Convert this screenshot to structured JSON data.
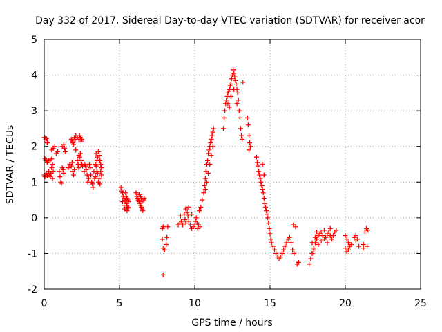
{
  "chart_data": {
    "type": "scatter",
    "title": "Day 332 of 2017, Sidereal Day-to-day VTEC variation (SDTVAR) for receiver acor",
    "xlabel": "GPS time / hours",
    "ylabel": "SDTVAR / TECUs",
    "xlim": [
      0,
      25
    ],
    "ylim": [
      -2,
      5
    ],
    "xticks": [
      0,
      5,
      10,
      15,
      20,
      25
    ],
    "yticks": [
      -2,
      -1,
      0,
      1,
      2,
      3,
      4,
      5
    ],
    "grid": true,
    "marker": "+",
    "color": "#ff0000",
    "series": [
      {
        "name": "SDTVAR",
        "points": [
          [
            0.0,
            2.25
          ],
          [
            0.05,
            2.25
          ],
          [
            0.1,
            2.2
          ],
          [
            0.15,
            2.22
          ],
          [
            0.2,
            2.1
          ],
          [
            0.05,
            1.65
          ],
          [
            0.1,
            1.6
          ],
          [
            0.15,
            1.62
          ],
          [
            0.2,
            1.55
          ],
          [
            0.3,
            1.6
          ],
          [
            0.4,
            1.62
          ],
          [
            0.5,
            1.65
          ],
          [
            0.55,
            1.5
          ],
          [
            0.0,
            1.2
          ],
          [
            0.05,
            1.15
          ],
          [
            0.1,
            1.2
          ],
          [
            0.15,
            1.25
          ],
          [
            0.2,
            1.18
          ],
          [
            0.3,
            1.3
          ],
          [
            0.35,
            1.2
          ],
          [
            0.4,
            1.15
          ],
          [
            0.45,
            1.25
          ],
          [
            0.5,
            1.4
          ],
          [
            0.55,
            1.1
          ],
          [
            0.6,
            1.3
          ],
          [
            0.5,
            1.9
          ],
          [
            0.6,
            1.95
          ],
          [
            0.7,
            2.0
          ],
          [
            0.8,
            1.8
          ],
          [
            0.9,
            1.85
          ],
          [
            1.0,
            1.3
          ],
          [
            1.05,
            1.15
          ],
          [
            1.1,
            1.0
          ],
          [
            1.15,
            0.97
          ],
          [
            1.2,
            1.4
          ],
          [
            1.25,
            1.35
          ],
          [
            1.3,
            1.25
          ],
          [
            1.2,
            2.0
          ],
          [
            1.3,
            2.05
          ],
          [
            1.35,
            1.95
          ],
          [
            1.4,
            1.85
          ],
          [
            1.6,
            1.4
          ],
          [
            1.7,
            1.5
          ],
          [
            1.8,
            1.45
          ],
          [
            1.85,
            1.55
          ],
          [
            1.9,
            1.3
          ],
          [
            1.95,
            1.2
          ],
          [
            2.0,
            1.35
          ],
          [
            1.8,
            2.2
          ],
          [
            1.85,
            2.15
          ],
          [
            1.9,
            2.1
          ],
          [
            1.95,
            2.05
          ],
          [
            2.0,
            2.25
          ],
          [
            2.05,
            2.2
          ],
          [
            2.1,
            1.9
          ],
          [
            2.2,
            1.6
          ],
          [
            2.25,
            1.5
          ],
          [
            2.3,
            1.4
          ],
          [
            2.1,
            2.3
          ],
          [
            2.2,
            2.25
          ],
          [
            2.3,
            2.2
          ],
          [
            2.35,
            2.3
          ],
          [
            2.4,
            2.25
          ],
          [
            2.45,
            2.15
          ],
          [
            2.5,
            2.2
          ],
          [
            2.3,
            1.75
          ],
          [
            2.35,
            1.7
          ],
          [
            2.4,
            1.8
          ],
          [
            2.45,
            1.6
          ],
          [
            2.5,
            1.5
          ],
          [
            2.55,
            1.45
          ],
          [
            2.65,
            1.3
          ],
          [
            2.7,
            1.5
          ],
          [
            2.75,
            1.45
          ],
          [
            2.8,
            1.35
          ],
          [
            2.85,
            1.2
          ],
          [
            2.9,
            1.0
          ],
          [
            2.95,
            1.1
          ],
          [
            3.0,
            1.5
          ],
          [
            3.05,
            1.4
          ],
          [
            3.1,
            1.2
          ],
          [
            3.15,
            1.0
          ],
          [
            3.2,
            0.95
          ],
          [
            3.25,
            0.85
          ],
          [
            3.3,
            1.3
          ],
          [
            3.35,
            1.1
          ],
          [
            3.4,
            1.5
          ],
          [
            3.45,
            1.45
          ],
          [
            3.5,
            1.6
          ],
          [
            3.55,
            1.7
          ],
          [
            3.6,
            1.85
          ],
          [
            3.65,
            1.75
          ],
          [
            3.7,
            1.6
          ],
          [
            3.75,
            1.5
          ],
          [
            3.8,
            1.2
          ],
          [
            3.55,
            1.25
          ],
          [
            3.6,
            1.0
          ],
          [
            3.65,
            1.1
          ],
          [
            3.7,
            0.95
          ],
          [
            3.75,
            1.3
          ],
          [
            3.8,
            1.4
          ],
          [
            3.45,
            1.8
          ],
          [
            3.5,
            1.3
          ],
          [
            3.4,
            1.15
          ],
          [
            5.1,
            0.85
          ],
          [
            5.15,
            0.75
          ],
          [
            5.2,
            0.7
          ],
          [
            5.25,
            0.6
          ],
          [
            5.3,
            0.55
          ],
          [
            5.35,
            0.5
          ],
          [
            5.4,
            0.45
          ],
          [
            5.45,
            0.4
          ],
          [
            5.5,
            0.35
          ],
          [
            5.55,
            0.3
          ],
          [
            5.6,
            0.28
          ],
          [
            5.2,
            0.45
          ],
          [
            5.3,
            0.35
          ],
          [
            5.4,
            0.7
          ],
          [
            5.45,
            0.6
          ],
          [
            5.5,
            0.55
          ],
          [
            5.55,
            0.5
          ],
          [
            5.6,
            0.45
          ],
          [
            5.35,
            0.25
          ],
          [
            5.5,
            0.2
          ],
          [
            6.1,
            0.7
          ],
          [
            6.15,
            0.6
          ],
          [
            6.2,
            0.55
          ],
          [
            6.25,
            0.5
          ],
          [
            6.3,
            0.45
          ],
          [
            6.35,
            0.4
          ],
          [
            6.4,
            0.35
          ],
          [
            6.45,
            0.3
          ],
          [
            6.5,
            0.25
          ],
          [
            6.55,
            0.2
          ],
          [
            6.6,
            0.5
          ],
          [
            6.65,
            0.55
          ],
          [
            6.3,
            0.65
          ],
          [
            6.4,
            0.6
          ],
          [
            6.45,
            0.55
          ],
          [
            6.5,
            0.45
          ],
          [
            7.85,
            -0.3
          ],
          [
            7.9,
            -0.25
          ],
          [
            7.85,
            -0.6
          ],
          [
            7.9,
            -0.85
          ],
          [
            8.0,
            -0.9
          ],
          [
            8.1,
            -0.75
          ],
          [
            8.15,
            -0.55
          ],
          [
            8.2,
            -0.25
          ],
          [
            7.9,
            -1.6
          ],
          [
            8.9,
            -0.2
          ],
          [
            9.0,
            -0.15
          ],
          [
            9.05,
            0.05
          ],
          [
            9.1,
            -0.1
          ],
          [
            9.2,
            -0.2
          ],
          [
            9.3,
            0.1
          ],
          [
            9.35,
            -0.05
          ],
          [
            9.4,
            -0.15
          ],
          [
            9.5,
            0.15
          ],
          [
            9.55,
            0.05
          ],
          [
            9.6,
            -0.1
          ],
          [
            9.7,
            -0.2
          ],
          [
            9.8,
            -0.3
          ],
          [
            9.9,
            -0.25
          ],
          [
            10.0,
            -0.2
          ],
          [
            10.05,
            -0.1
          ],
          [
            10.1,
            0.0
          ],
          [
            10.15,
            -0.15
          ],
          [
            10.2,
            -0.3
          ],
          [
            10.25,
            -0.2
          ],
          [
            10.3,
            0.2
          ],
          [
            10.35,
            -0.25
          ],
          [
            9.4,
            0.25
          ],
          [
            9.6,
            0.3
          ],
          [
            9.8,
            0.1
          ],
          [
            10.4,
            0.3
          ],
          [
            10.5,
            0.5
          ],
          [
            10.6,
            0.7
          ],
          [
            10.65,
            0.9
          ],
          [
            10.7,
            1.1
          ],
          [
            10.75,
            1.3
          ],
          [
            10.8,
            1.5
          ],
          [
            10.85,
            1.6
          ],
          [
            10.9,
            1.8
          ],
          [
            10.95,
            1.9
          ],
          [
            11.0,
            2.0
          ],
          [
            11.05,
            2.1
          ],
          [
            11.1,
            2.2
          ],
          [
            11.15,
            2.3
          ],
          [
            11.2,
            2.4
          ],
          [
            11.25,
            2.5
          ],
          [
            10.7,
            0.8
          ],
          [
            10.8,
            1.0
          ],
          [
            10.9,
            1.25
          ],
          [
            11.0,
            1.5
          ],
          [
            11.1,
            1.75
          ],
          [
            11.2,
            2.0
          ],
          [
            11.9,
            2.5
          ],
          [
            11.95,
            2.8
          ],
          [
            12.0,
            3.0
          ],
          [
            12.05,
            3.2
          ],
          [
            12.1,
            3.3
          ],
          [
            12.15,
            3.4
          ],
          [
            12.2,
            3.5
          ],
          [
            12.25,
            3.55
          ],
          [
            12.3,
            3.6
          ],
          [
            12.35,
            3.7
          ],
          [
            12.4,
            3.75
          ],
          [
            12.45,
            3.9
          ],
          [
            12.5,
            4.0
          ],
          [
            12.55,
            4.15
          ],
          [
            12.6,
            4.05
          ],
          [
            12.65,
            3.95
          ],
          [
            12.7,
            3.85
          ],
          [
            12.75,
            3.75
          ],
          [
            12.8,
            3.6
          ],
          [
            12.85,
            3.5
          ],
          [
            12.9,
            3.3
          ],
          [
            12.95,
            3.0
          ],
          [
            13.0,
            2.8
          ],
          [
            13.05,
            2.5
          ],
          [
            13.1,
            2.3
          ],
          [
            13.15,
            2.2
          ],
          [
            13.2,
            3.8
          ],
          [
            12.2,
            3.2
          ],
          [
            12.4,
            3.4
          ],
          [
            12.6,
            3.6
          ],
          [
            12.8,
            3.2
          ],
          [
            13.0,
            3.0
          ],
          [
            12.3,
            3.1
          ],
          [
            13.5,
            2.8
          ],
          [
            13.55,
            2.6
          ],
          [
            13.6,
            2.3
          ],
          [
            13.65,
            2.1
          ],
          [
            13.7,
            2.0
          ],
          [
            13.6,
            1.9
          ],
          [
            14.1,
            1.7
          ],
          [
            14.15,
            1.55
          ],
          [
            14.2,
            1.45
          ],
          [
            14.25,
            1.3
          ],
          [
            14.3,
            1.2
          ],
          [
            14.35,
            1.1
          ],
          [
            14.4,
            1.0
          ],
          [
            14.45,
            0.9
          ],
          [
            14.5,
            0.8
          ],
          [
            14.55,
            0.7
          ],
          [
            14.6,
            0.55
          ],
          [
            14.65,
            0.4
          ],
          [
            14.7,
            0.3
          ],
          [
            14.75,
            0.2
          ],
          [
            14.8,
            0.1
          ],
          [
            14.85,
            0.0
          ],
          [
            14.9,
            -0.15
          ],
          [
            14.95,
            -0.3
          ],
          [
            15.0,
            -0.45
          ],
          [
            15.05,
            -0.6
          ],
          [
            15.1,
            -0.7
          ],
          [
            15.2,
            -0.8
          ],
          [
            15.3,
            -0.9
          ],
          [
            15.4,
            -1.0
          ],
          [
            15.5,
            -1.1
          ],
          [
            15.6,
            -1.15
          ],
          [
            15.7,
            -1.1
          ],
          [
            15.8,
            -1.0
          ],
          [
            15.9,
            -0.9
          ],
          [
            14.5,
            1.5
          ],
          [
            14.6,
            1.2
          ],
          [
            16.0,
            -0.8
          ],
          [
            16.1,
            -0.7
          ],
          [
            16.2,
            -0.6
          ],
          [
            16.3,
            -0.55
          ],
          [
            16.4,
            -0.7
          ],
          [
            16.5,
            -0.9
          ],
          [
            16.6,
            -1.0
          ],
          [
            16.55,
            -0.2
          ],
          [
            16.7,
            -0.25
          ],
          [
            16.9,
            -1.25
          ],
          [
            16.8,
            -1.3
          ],
          [
            17.6,
            -1.3
          ],
          [
            17.7,
            -1.15
          ],
          [
            17.8,
            -1.0
          ],
          [
            17.9,
            -0.85
          ],
          [
            18.0,
            -0.7
          ],
          [
            18.1,
            -0.6
          ],
          [
            18.2,
            -0.5
          ],
          [
            18.3,
            -0.45
          ],
          [
            18.4,
            -0.4
          ],
          [
            18.5,
            -0.5
          ],
          [
            18.6,
            -0.6
          ],
          [
            18.7,
            -0.55
          ],
          [
            18.8,
            -0.45
          ],
          [
            18.9,
            -0.4
          ],
          [
            19.0,
            -0.5
          ],
          [
            19.1,
            -0.6
          ],
          [
            19.2,
            -0.5
          ],
          [
            19.3,
            -0.4
          ],
          [
            19.4,
            -0.35
          ],
          [
            17.8,
            -0.7
          ],
          [
            18.0,
            -0.55
          ],
          [
            18.2,
            -0.75
          ],
          [
            18.4,
            -0.65
          ],
          [
            18.6,
            -0.35
          ],
          [
            18.8,
            -0.7
          ],
          [
            19.0,
            -0.3
          ],
          [
            17.9,
            -0.9
          ],
          [
            18.1,
            -0.4
          ],
          [
            20.0,
            -0.5
          ],
          [
            20.1,
            -0.6
          ],
          [
            20.2,
            -0.7
          ],
          [
            20.3,
            -0.8
          ],
          [
            20.4,
            -0.75
          ],
          [
            20.0,
            -0.85
          ],
          [
            20.1,
            -0.95
          ],
          [
            20.2,
            -0.9
          ],
          [
            20.6,
            -0.55
          ],
          [
            20.7,
            -0.65
          ],
          [
            20.8,
            -0.6
          ],
          [
            20.7,
            -0.5
          ],
          [
            20.9,
            -0.8
          ],
          [
            21.2,
            -0.85
          ],
          [
            21.3,
            -0.4
          ],
          [
            21.4,
            -0.3
          ],
          [
            21.5,
            -0.35
          ],
          [
            21.2,
            -0.75
          ],
          [
            21.45,
            -0.8
          ]
        ]
      }
    ]
  }
}
